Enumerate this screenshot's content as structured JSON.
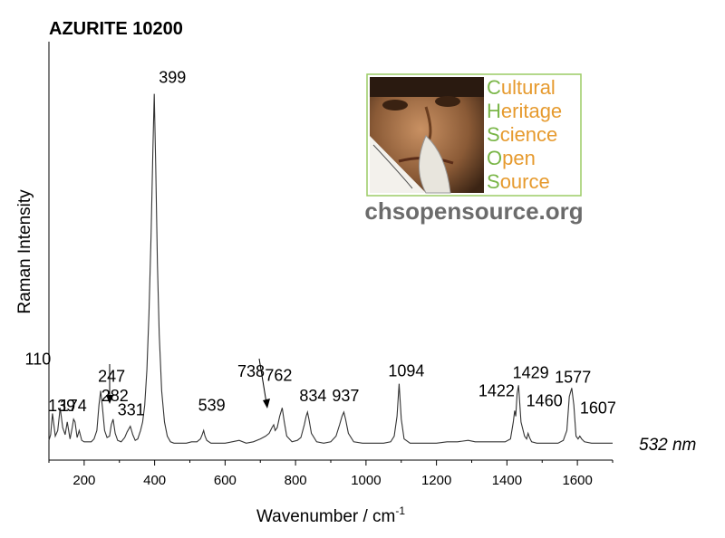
{
  "chart_data": {
    "type": "line",
    "title": "AZURITE 10200",
    "xlabel": "Wavenumber / cm",
    "xlabel_superscript": "-1",
    "ylabel": "Raman Intensity",
    "xlim": [
      100,
      1700
    ],
    "xticks": [
      200,
      400,
      600,
      800,
      1000,
      1200,
      1400,
      1600
    ],
    "excitation_label": "532 nm",
    "series": [
      {
        "x": [
          100,
          105,
          110,
          118,
          125,
          132,
          139,
          146,
          152,
          160,
          166,
          170,
          174,
          180,
          186,
          193,
          200,
          210,
          220,
          228,
          236,
          242,
          247,
          252,
          258,
          265,
          272,
          277,
          282,
          288,
          295,
          305,
          315,
          322,
          331,
          338,
          345,
          352,
          360,
          366,
          372,
          378,
          384,
          390,
          395,
          399,
          403,
          408,
          413,
          420,
          428,
          436,
          445,
          455,
          465,
          475,
          490,
          505,
          520,
          530,
          535,
          539,
          543,
          548,
          560,
          580,
          600,
          620,
          640,
          660,
          680,
          700,
          715,
          725,
          733,
          738,
          742,
          748,
          755,
          762,
          768,
          775,
          790,
          805,
          815,
          825,
          830,
          834,
          838,
          845,
          860,
          880,
          900,
          915,
          925,
          932,
          937,
          942,
          950,
          965,
          990,
          1020,
          1050,
          1070,
          1080,
          1088,
          1094,
          1100,
          1108,
          1125,
          1150,
          1175,
          1200,
          1230,
          1260,
          1290,
          1310,
          1340,
          1370,
          1395,
          1410,
          1418,
          1422,
          1425,
          1429,
          1433,
          1440,
          1450,
          1456,
          1460,
          1464,
          1470,
          1485,
          1500,
          1520,
          1545,
          1560,
          1570,
          1577,
          1584,
          1590,
          1596,
          1602,
          1607,
          1612,
          1620,
          1640,
          1660,
          1680,
          1700
        ],
        "y": [
          5,
          9,
          24,
          8,
          12,
          28,
          14,
          9,
          18,
          6,
          14,
          20,
          18,
          7,
          12,
          5,
          4,
          4,
          4,
          6,
          12,
          30,
          40,
          28,
          12,
          7,
          8,
          16,
          20,
          10,
          5,
          4,
          7,
          11,
          15,
          9,
          5,
          6,
          12,
          18,
          30,
          55,
          95,
          150,
          210,
          250,
          200,
          130,
          80,
          40,
          18,
          8,
          4,
          3,
          3,
          3,
          3,
          4,
          4,
          6,
          9,
          12,
          8,
          5,
          3,
          3,
          3,
          4,
          5,
          3,
          4,
          6,
          8,
          10,
          14,
          16,
          12,
          14,
          22,
          28,
          18,
          8,
          4,
          5,
          7,
          16,
          22,
          25,
          20,
          10,
          4,
          3,
          4,
          8,
          16,
          22,
          25,
          20,
          10,
          4,
          3,
          3,
          3,
          4,
          8,
          22,
          45,
          20,
          6,
          3,
          3,
          3,
          3,
          4,
          4,
          5,
          4,
          4,
          4,
          4,
          6,
          18,
          26,
          22,
          38,
          44,
          18,
          8,
          6,
          10,
          7,
          4,
          3,
          3,
          3,
          3,
          5,
          12,
          36,
          42,
          30,
          8,
          6,
          8,
          6,
          4,
          3,
          3,
          3,
          3
        ],
        "ymax": 260
      }
    ],
    "peak_labels": [
      {
        "text": "110",
        "x": 110,
        "y": 24
      },
      {
        "text": "139",
        "x": 139,
        "y": 14
      },
      {
        "text": "174",
        "x": 174,
        "y": 18
      },
      {
        "text": "247",
        "x": 247,
        "y": 40
      },
      {
        "text": "282",
        "x": 282,
        "y": 20
      },
      {
        "text": "331",
        "x": 331,
        "y": 15
      },
      {
        "text": "399",
        "x": 399,
        "y": 250
      },
      {
        "text": "539",
        "x": 539,
        "y": 12
      },
      {
        "text": "738",
        "x": 738,
        "y": 16
      },
      {
        "text": "762",
        "x": 762,
        "y": 28
      },
      {
        "text": "834",
        "x": 834,
        "y": 25
      },
      {
        "text": "937",
        "x": 937,
        "y": 25
      },
      {
        "text": "1094",
        "x": 1094,
        "y": 45
      },
      {
        "text": "1422",
        "x": 1422,
        "y": 26
      },
      {
        "text": "1429",
        "x": 1429,
        "y": 44
      },
      {
        "text": "1460",
        "x": 1460,
        "y": 10
      },
      {
        "text": "1577",
        "x": 1577,
        "y": 42
      },
      {
        "text": "1607",
        "x": 1607,
        "y": 8
      }
    ]
  },
  "logo": {
    "words": [
      "Cultural",
      "Heritage",
      "Science",
      "Open",
      "Source"
    ],
    "url": "chsopensource.org",
    "initial_color": "#7ab648",
    "rest_color": "#e69a2e",
    "url_color": "#6b6b6b",
    "border_color": "#9ccc65"
  }
}
